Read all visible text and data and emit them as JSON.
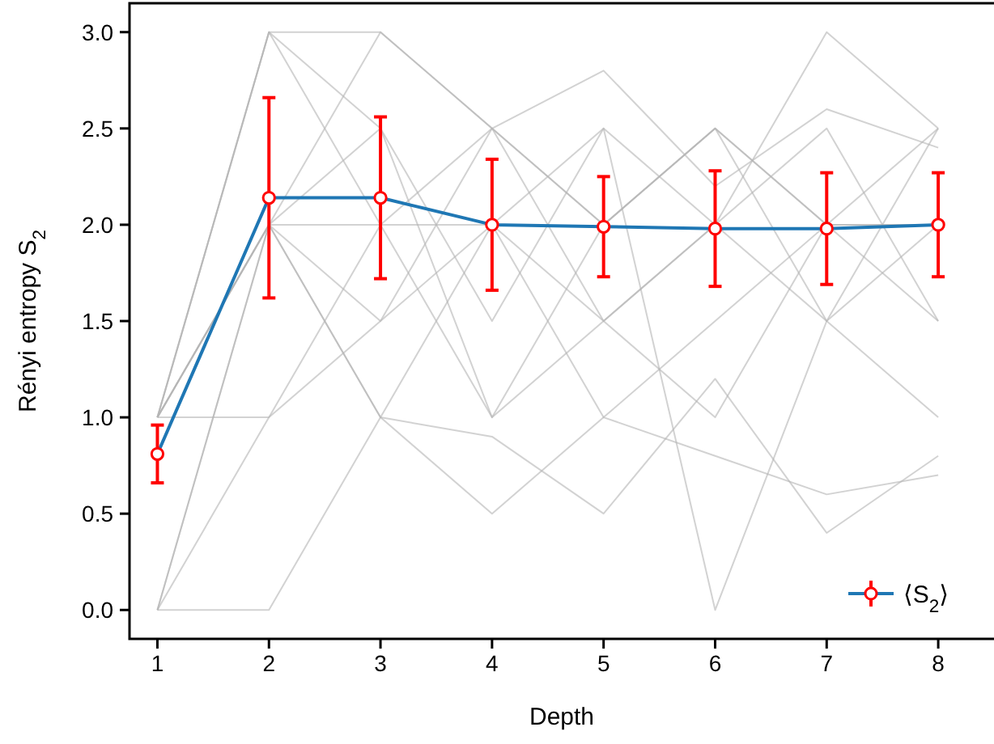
{
  "chart_data": {
    "type": "line",
    "xlabel": "Depth",
    "ylabel": "Rényi entropy S$_{2}$",
    "x": [
      1,
      2,
      3,
      4,
      5,
      6,
      7,
      8
    ],
    "xlim": [
      0.75,
      8.5
    ],
    "xticks": [
      1,
      2,
      3,
      4,
      5,
      6,
      7,
      8
    ],
    "ylim": [
      -0.15,
      3.15
    ],
    "yticks": [
      {
        "value": 0,
        "label": "0.0"
      },
      {
        "value": 0.5,
        "label": "0.5"
      },
      {
        "value": 1,
        "label": "1.0"
      },
      {
        "value": 1.5,
        "label": "1.5"
      },
      {
        "value": 2,
        "label": "2.0"
      },
      {
        "value": 2.5,
        "label": "2.5"
      },
      {
        "value": 3,
        "label": "3.0"
      }
    ],
    "grid": false,
    "legend": "bottom right",
    "line_style": "solid",
    "series": [
      {
        "color": "#b4b4b4",
        "values": [
          1,
          3,
          3,
          2.5,
          2,
          2.5,
          2,
          2
        ]
      },
      {
        "color": "#b4b4b4",
        "values": [
          0,
          2,
          1,
          2,
          1.5,
          1,
          2,
          1.5
        ]
      },
      {
        "color": "#b4b4b4",
        "values": [
          1,
          2,
          2.5,
          1.5,
          2.5,
          2,
          3,
          2.5
        ]
      },
      {
        "color": "#b4b4b4",
        "values": [
          1,
          3,
          2,
          1,
          1.5,
          2,
          1.5,
          2
        ]
      },
      {
        "color": "#b4b4b4",
        "values": [
          0,
          1,
          2,
          2,
          2.5,
          0,
          1.5,
          1
        ]
      },
      {
        "color": "#b4b4b4",
        "values": [
          1,
          2,
          1.5,
          2.5,
          2,
          2.5,
          2,
          2.5
        ]
      },
      {
        "color": "#b4b4b4",
        "values": [
          1,
          1,
          1.5,
          2,
          1,
          1.5,
          2,
          2
        ]
      },
      {
        "color": "#b4b4b4",
        "values": [
          0,
          2,
          3,
          2.5,
          1.5,
          2,
          2.5,
          1.5
        ]
      },
      {
        "color": "#b4b4b4",
        "values": [
          1,
          3,
          2.5,
          1,
          2,
          2.5,
          1.5,
          2.5
        ]
      },
      {
        "color": "#b4b4b4",
        "values": [
          1,
          2,
          2,
          2.5,
          2.8,
          2.2,
          2.6,
          2.4
        ]
      },
      {
        "color": "#b4b4b4",
        "values": [
          0,
          0,
          1,
          0.5,
          1,
          0.8,
          0.6,
          0.7
        ]
      },
      {
        "color": "#b4b4b4",
        "values": [
          1,
          2,
          1,
          0.9,
          0.5,
          1.2,
          0.4,
          0.8
        ]
      },
      {
        "name": "⟨S$_{2}$⟩",
        "color": "#1f77b4",
        "marker": "circle",
        "colors": [
          "#ff0000",
          "#ff0000",
          "#ff0000",
          "#ff0000",
          "#ff0000",
          "#ff0000",
          "#ff0000",
          "#ff0000"
        ],
        "values": [
          0.81,
          2.14,
          2.14,
          2.0,
          1.99,
          1.98,
          1.98,
          2.0
        ],
        "errors": [
          0.15,
          0.52,
          0.42,
          0.34,
          0.26,
          0.3,
          0.29,
          0.27
        ]
      }
    ]
  }
}
